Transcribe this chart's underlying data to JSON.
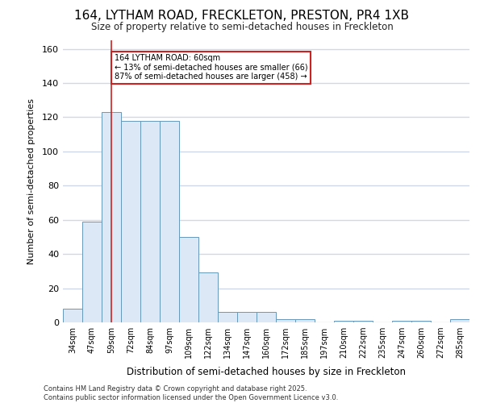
{
  "title1": "164, LYTHAM ROAD, FRECKLETON, PRESTON, PR4 1XB",
  "title2": "Size of property relative to semi-detached houses in Freckleton",
  "xlabel": "Distribution of semi-detached houses by size in Freckleton",
  "ylabel": "Number of semi-detached properties",
  "categories": [
    "34sqm",
    "47sqm",
    "59sqm",
    "72sqm",
    "84sqm",
    "97sqm",
    "109sqm",
    "122sqm",
    "134sqm",
    "147sqm",
    "160sqm",
    "172sqm",
    "185sqm",
    "197sqm",
    "210sqm",
    "222sqm",
    "235sqm",
    "247sqm",
    "260sqm",
    "272sqm",
    "285sqm"
  ],
  "values": [
    8,
    59,
    123,
    118,
    118,
    118,
    50,
    29,
    6,
    6,
    6,
    2,
    2,
    0,
    1,
    1,
    0,
    1,
    1,
    0,
    2
  ],
  "bar_color": "#dce8f5",
  "bar_edge_color": "#6699bb",
  "annotation_text": "164 LYTHAM ROAD: 60sqm\n← 13% of semi-detached houses are smaller (66)\n87% of semi-detached houses are larger (458) →",
  "marker_x": "59sqm",
  "marker_color": "#cc2222",
  "ylim": [
    0,
    165
  ],
  "yticks": [
    0,
    20,
    40,
    60,
    80,
    100,
    120,
    140,
    160
  ],
  "footer_text": "Contains HM Land Registry data © Crown copyright and database right 2025.\nContains public sector information licensed under the Open Government Licence v3.0.",
  "bg_color": "#ffffff",
  "grid_color": "#d0d8e8",
  "annotation_box_color": "#ffffff",
  "annotation_box_edge": "#cc2222"
}
